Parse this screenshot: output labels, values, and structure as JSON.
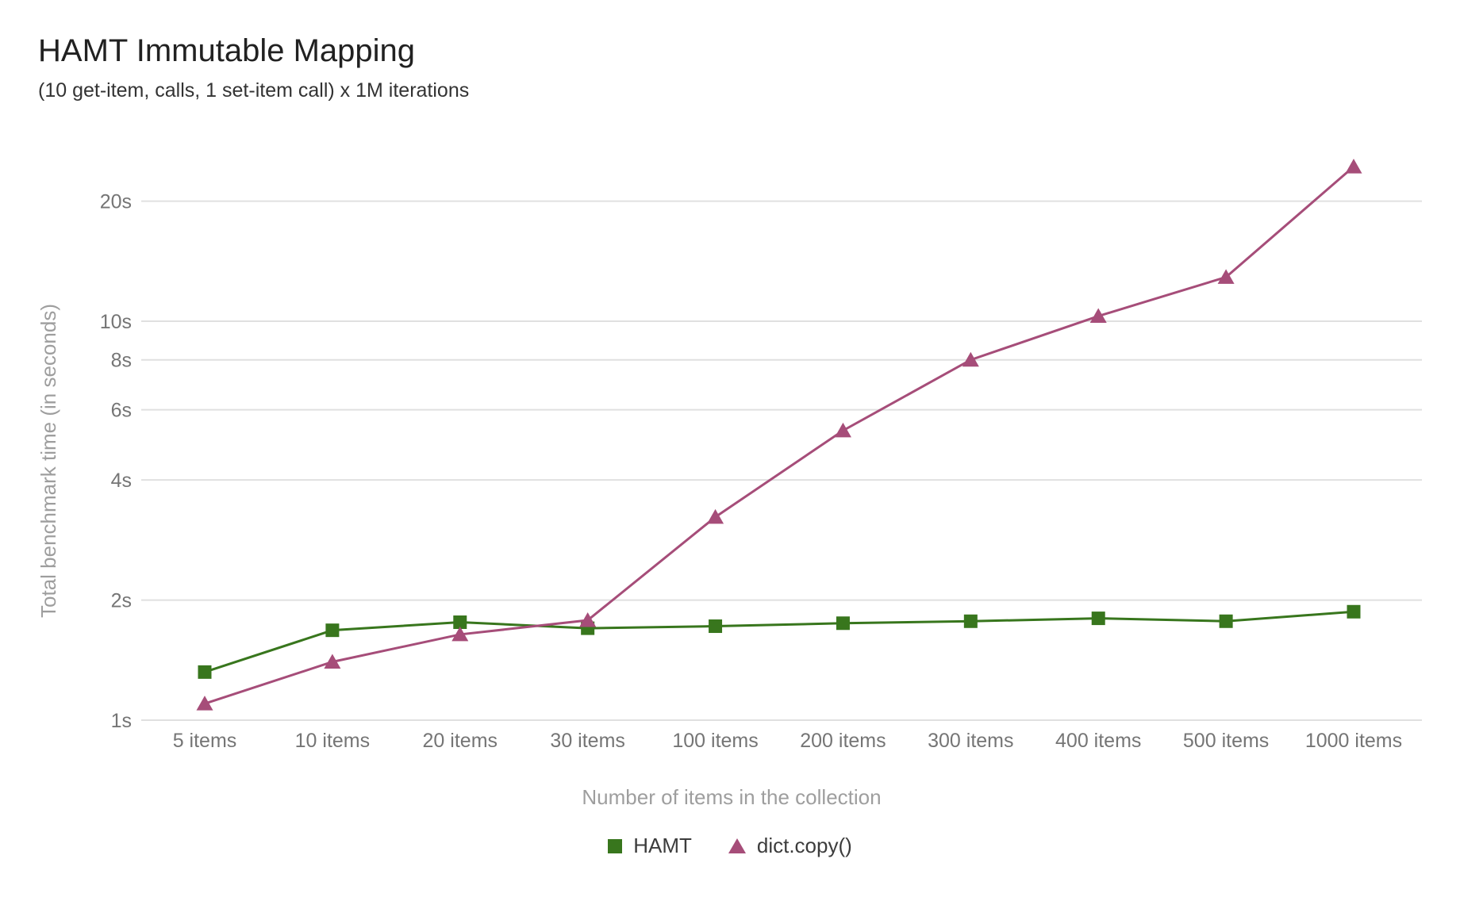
{
  "header": {
    "title": "HAMT Immutable Mapping",
    "subtitle": "(10 get-item, calls, 1 set-item call) x 1M iterations"
  },
  "colors": {
    "background": "#ffffff",
    "title": "#212121",
    "subtitle": "#333333",
    "grid": "#e0e0e0",
    "tick_label": "#757575",
    "axis_title": "#9e9e9e",
    "legend_text": "#3c3c3c",
    "hamt_green": "#38761d",
    "dict_copy_magenta": "#a64d79"
  },
  "chart_data": {
    "type": "line",
    "title": "HAMT Immutable Mapping",
    "subtitle": "(10 get-item, calls, 1 set-item call) x 1M iterations",
    "xlabel": "Number of items in the collection",
    "ylabel": "Total benchmark time (in seconds)",
    "y_scale": "log",
    "ylim": [
      1,
      26
    ],
    "grid": true,
    "legend_position": "bottom",
    "y_ticks": [
      {
        "value": 1,
        "label": "1s"
      },
      {
        "value": 2,
        "label": "2s"
      },
      {
        "value": 4,
        "label": "4s"
      },
      {
        "value": 6,
        "label": "6s"
      },
      {
        "value": 8,
        "label": "8s"
      },
      {
        "value": 10,
        "label": "10s"
      },
      {
        "value": 20,
        "label": "20s"
      }
    ],
    "categories": [
      "5 items",
      "10 items",
      "20 items",
      "30 items",
      "100 items",
      "200 items",
      "300 items",
      "400 items",
      "500 items",
      "1000 items"
    ],
    "series": [
      {
        "name": "HAMT",
        "color": "#38761d",
        "marker": "square",
        "values": [
          1.32,
          1.68,
          1.76,
          1.7,
          1.72,
          1.75,
          1.77,
          1.8,
          1.77,
          1.87
        ]
      },
      {
        "name": "dict.copy()",
        "color": "#a64d79",
        "marker": "triangle",
        "values": [
          1.1,
          1.4,
          1.64,
          1.78,
          3.23,
          5.32,
          8.0,
          10.3,
          12.9,
          24.4
        ]
      }
    ]
  }
}
